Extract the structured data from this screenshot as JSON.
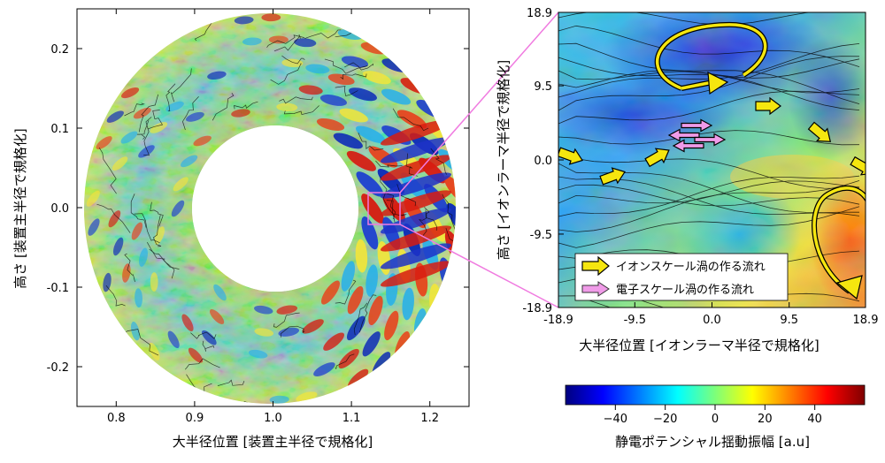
{
  "chart_data": [
    {
      "type": "heatmap",
      "title": "",
      "xlabel": "大半径位置 [装置主半径で規格化]",
      "ylabel": "高さ [装置主半径で規格化]",
      "xlim": [
        0.75,
        1.25
      ],
      "ylim": [
        -0.25,
        0.25
      ],
      "xticks": [
        "0.8",
        "0.9",
        "1.0",
        "1.1",
        "1.2"
      ],
      "yticks": [
        "0.2",
        "0.1",
        "0.0",
        "-0.1",
        "-0.2"
      ],
      "domain": {
        "shape": "annulus",
        "center": [
          1.0,
          0.0
        ],
        "inner_radius": 0.1,
        "outer_radius": 0.24
      },
      "zoom_region": {
        "x": [
          1.12,
          1.16
        ],
        "y": [
          -0.02,
          0.02
        ]
      }
    },
    {
      "type": "heatmap",
      "title": "",
      "xlabel": "大半径位置 [イオンラーマ半径で規格化]",
      "ylabel": "高さ [イオンラーマ半径で規格化]",
      "xlim": [
        -18.9,
        18.9
      ],
      "ylim": [
        -18.9,
        18.9
      ],
      "xticks": [
        "-18.9",
        "-9.5",
        "0.0",
        "9.5",
        "18.9"
      ],
      "yticks": [
        "18.9",
        "9.5",
        "0.0",
        "-9.5",
        "-18.9"
      ],
      "legend": {
        "placement": "lower-left",
        "entries": [
          {
            "label": "イオンスケール渦の作る流れ",
            "color": "#f5e60f"
          },
          {
            "label": "電子スケール渦の作る流れ",
            "color": "#f09be8"
          }
        ]
      }
    },
    {
      "type": "colorbar",
      "label": "静電ポテンシャル揺動振幅 [a.u]",
      "range": [
        -60,
        60
      ],
      "ticks": [
        "−40",
        "−20",
        "0",
        "20",
        "40"
      ],
      "colormap": "jet"
    }
  ]
}
